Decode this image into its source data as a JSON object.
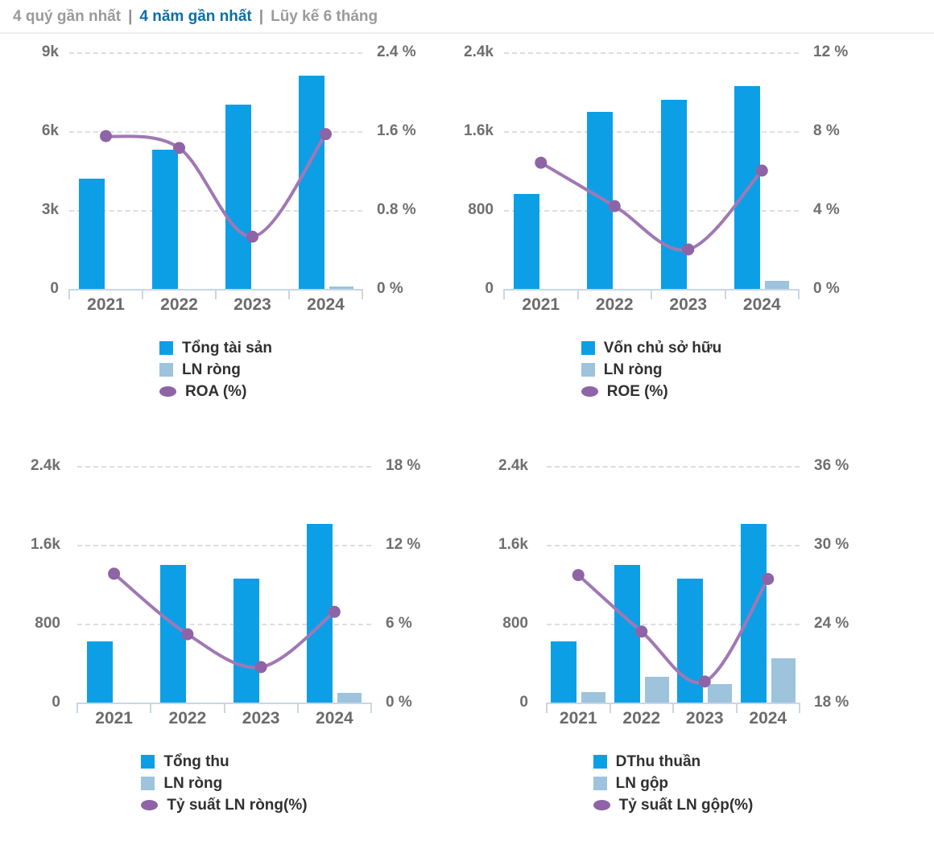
{
  "header": {
    "tabs": [
      {
        "label": "4 quý gần nhất",
        "active": false
      },
      {
        "label": "4 năm gần nhất",
        "active": true
      },
      {
        "label": "Lũy kế 6 tháng",
        "active": false
      }
    ],
    "separator": "|"
  },
  "colors": {
    "bar_primary": "#0d9fe6",
    "bar_secondary": "#9dc3dd",
    "line": "#a078b4",
    "line_marker": "#8e64a6",
    "tab_active": "#0b6fa4",
    "tab_inactive": "#9a9a9a",
    "axis_line": "#c9d7e5",
    "gridline": "#dedede"
  },
  "chart_data": [
    {
      "type": "bar+line combo",
      "categories": [
        "2021",
        "2022",
        "2023",
        "2024"
      ],
      "series": [
        {
          "name": "Tổng tài sản",
          "kind": "bar",
          "role": "primary",
          "axis": "left",
          "color": "#0d9fe6",
          "values": [
            4200,
            5300,
            7000,
            8100
          ]
        },
        {
          "name": "LN ròng",
          "kind": "bar",
          "role": "secondary",
          "axis": "left",
          "color": "#9dc3dd",
          "values": [
            0,
            0,
            0,
            80
          ]
        },
        {
          "name": "ROA (%)",
          "kind": "line",
          "axis": "right",
          "color": "#a078b4",
          "marker_color": "#8e64a6",
          "values": [
            1.55,
            1.43,
            0.53,
            1.57
          ]
        }
      ],
      "left_axis": {
        "min": 0,
        "max": 9000,
        "ticks": [
          "9k",
          "6k",
          "3k",
          "0"
        ]
      },
      "right_axis": {
        "min": 0,
        "max": 2.4,
        "ticks": [
          "2.4 %",
          "1.6 %",
          "0.8 %",
          "0 %"
        ]
      },
      "grid": "dashed-horizontal",
      "legend_position": "bottom"
    },
    {
      "type": "bar+line combo",
      "categories": [
        "2021",
        "2022",
        "2023",
        "2024"
      ],
      "series": [
        {
          "name": "Vốn chủ sở hữu",
          "kind": "bar",
          "role": "primary",
          "axis": "left",
          "color": "#0d9fe6",
          "values": [
            960,
            1800,
            1920,
            2060
          ]
        },
        {
          "name": "LN ròng",
          "kind": "bar",
          "role": "secondary",
          "axis": "left",
          "color": "#9dc3dd",
          "values": [
            0,
            0,
            0,
            80
          ]
        },
        {
          "name": "ROE (%)",
          "kind": "line",
          "axis": "right",
          "color": "#a078b4",
          "marker_color": "#8e64a6",
          "values": [
            6.4,
            4.2,
            2.0,
            6.0
          ]
        }
      ],
      "left_axis": {
        "min": 0,
        "max": 2400,
        "ticks": [
          "2.4k",
          "1.6k",
          "800",
          "0"
        ]
      },
      "right_axis": {
        "min": 0,
        "max": 12,
        "ticks": [
          "12 %",
          "8 %",
          "4 %",
          "0 %"
        ]
      },
      "grid": "dashed-horizontal",
      "legend_position": "bottom"
    },
    {
      "type": "bar+line combo",
      "categories": [
        "2021",
        "2022",
        "2023",
        "2024"
      ],
      "series": [
        {
          "name": "Tổng thu",
          "kind": "bar",
          "role": "primary",
          "axis": "left",
          "color": "#0d9fe6",
          "values": [
            620,
            1400,
            1260,
            1810
          ]
        },
        {
          "name": "LN ròng",
          "kind": "bar",
          "role": "secondary",
          "axis": "left",
          "color": "#9dc3dd",
          "values": [
            0,
            0,
            0,
            100
          ]
        },
        {
          "name": "Tỷ suất LN ròng(%)",
          "kind": "line",
          "axis": "right",
          "color": "#a078b4",
          "marker_color": "#8e64a6",
          "values": [
            9.8,
            5.2,
            2.7,
            6.9
          ]
        }
      ],
      "left_axis": {
        "min": 0,
        "max": 2400,
        "ticks": [
          "2.4k",
          "1.6k",
          "800",
          "0"
        ]
      },
      "right_axis": {
        "min": 0,
        "max": 18,
        "ticks": [
          "18 %",
          "12 %",
          "6 %",
          "0 %"
        ]
      },
      "grid": "dashed-horizontal",
      "legend_position": "bottom"
    },
    {
      "type": "bar+line combo",
      "categories": [
        "2021",
        "2022",
        "2023",
        "2024"
      ],
      "series": [
        {
          "name": "DThu thuần",
          "kind": "bar",
          "role": "primary",
          "axis": "left",
          "color": "#0d9fe6",
          "values": [
            620,
            1400,
            1260,
            1810
          ]
        },
        {
          "name": "LN gộp",
          "kind": "bar",
          "role": "secondary",
          "axis": "left",
          "color": "#9dc3dd",
          "values": [
            110,
            260,
            185,
            450
          ]
        },
        {
          "name": "Tỷ suất LN gộp(%)",
          "kind": "line",
          "axis": "right",
          "color": "#a078b4",
          "marker_color": "#8e64a6",
          "values": [
            27.7,
            23.4,
            19.6,
            27.4
          ]
        }
      ],
      "left_axis": {
        "min": 0,
        "max": 2400,
        "ticks": [
          "2.4k",
          "1.6k",
          "800",
          "0"
        ]
      },
      "right_axis": {
        "min": 18,
        "max": 36,
        "ticks": [
          "36 %",
          "30 %",
          "24 %",
          "18 %"
        ]
      },
      "grid": "dashed-horizontal",
      "legend_position": "bottom"
    }
  ]
}
